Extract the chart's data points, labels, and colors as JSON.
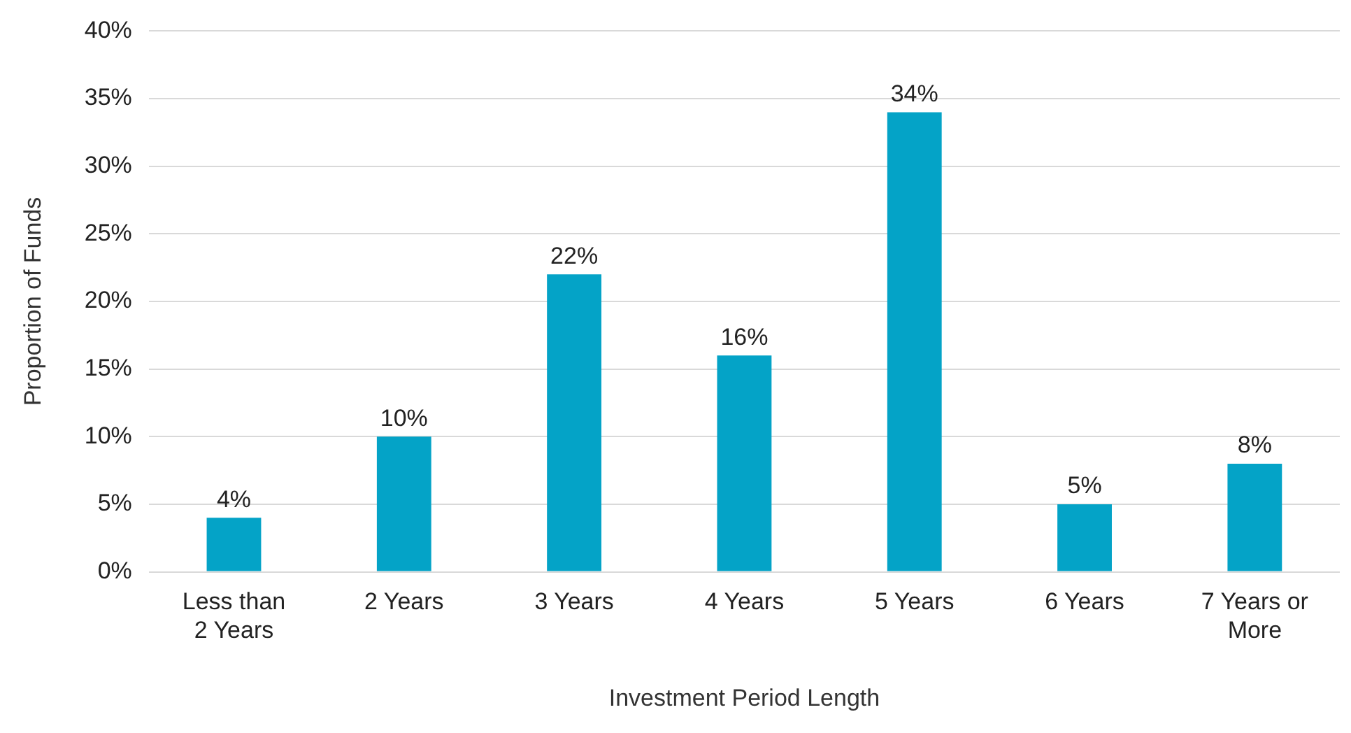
{
  "chart_data": {
    "type": "bar",
    "xlabel": "Investment Period Length",
    "ylabel": "Proportion of Funds",
    "categories": [
      "Less than 2 Years",
      "2 Years",
      "3 Years",
      "4 Years",
      "5 Years",
      "6 Years",
      "7 Years or More"
    ],
    "values": [
      4,
      10,
      22,
      16,
      34,
      5,
      8
    ],
    "color": "#04a3c7",
    "ylim": [
      0,
      40
    ],
    "yticks": [
      {
        "value": 0,
        "label": "0%"
      },
      {
        "value": 5,
        "label": "5%"
      },
      {
        "value": 10,
        "label": "10%"
      },
      {
        "value": 15,
        "label": "15%"
      },
      {
        "value": 20,
        "label": "20%"
      },
      {
        "value": 25,
        "label": "25%"
      },
      {
        "value": 30,
        "label": "30%"
      },
      {
        "value": 35,
        "label": "35%"
      },
      {
        "value": 40,
        "label": "40%"
      }
    ],
    "value_labels": [
      "4%",
      "10%",
      "22%",
      "16%",
      "34%",
      "5%",
      "8%"
    ],
    "grid": "y",
    "legend": false
  }
}
